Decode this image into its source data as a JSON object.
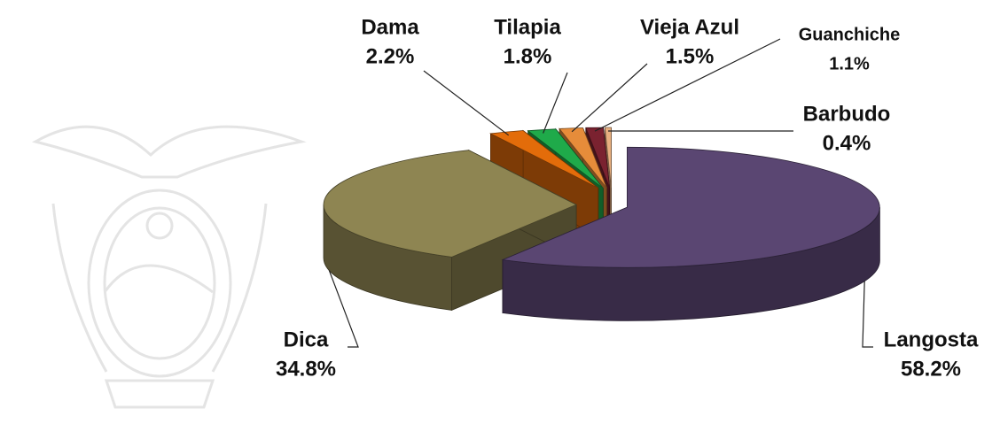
{
  "chart_data": {
    "type": "pie3d",
    "categories": [
      "Langosta",
      "Dica",
      "Dama",
      "Tilapia",
      "Vieja Azul",
      "Guanchiche",
      "Barbudo"
    ],
    "values": [
      58.2,
      34.8,
      2.2,
      1.8,
      1.5,
      1.1,
      0.4
    ],
    "value_labels": [
      "58.2%",
      "34.8%",
      "2.2%",
      "1.8%",
      "1.5%",
      "1.1%",
      "0.4%"
    ],
    "colors": [
      "#5a4672",
      "#8e8552",
      "#e36c0a",
      "#1faa4a",
      "#e68c3a",
      "#7a2230",
      "#e8b080"
    ]
  }
}
